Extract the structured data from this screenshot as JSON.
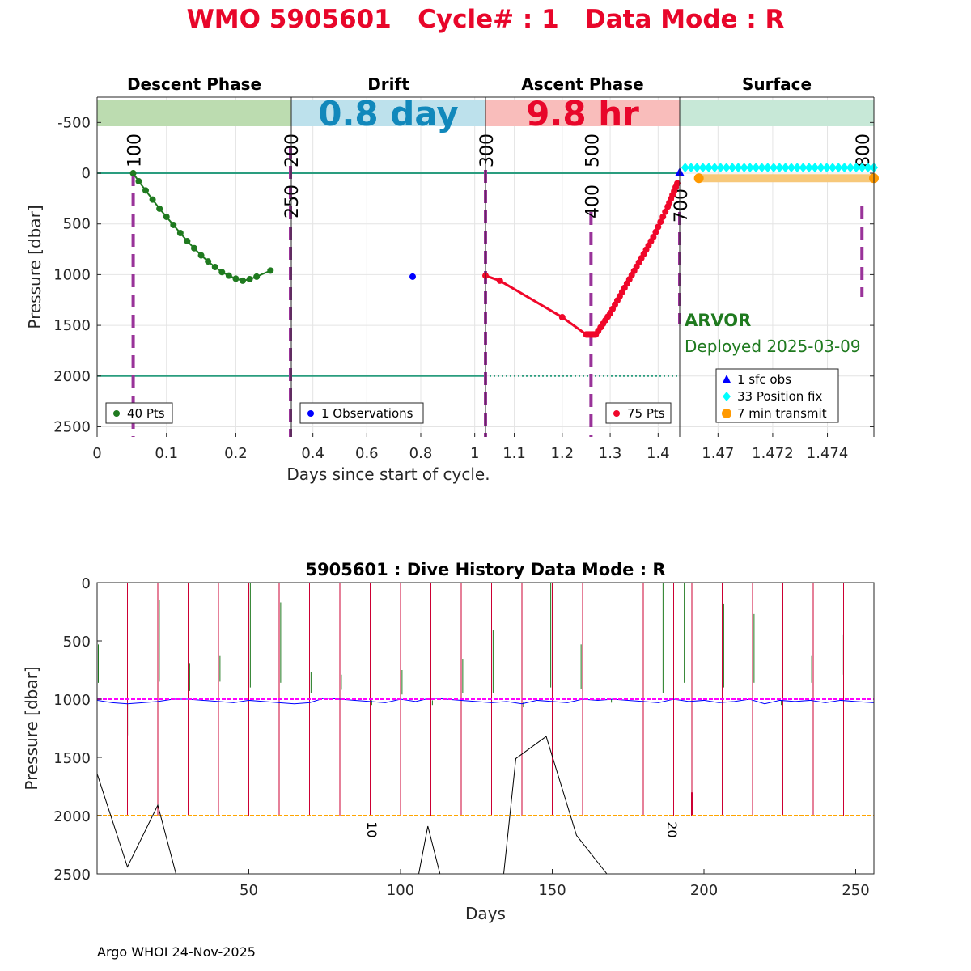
{
  "page": {
    "title": "WMO 5905601   Cycle# : 1   Data Mode : R",
    "footer": "Argo WHOI 24-Nov-2025"
  },
  "colors": {
    "title": "#e8062a",
    "descent": "#1f7a1f",
    "drift": "#0000ff",
    "ascent": "#f0072a",
    "position": "#00ffff",
    "transmit": "#ffa500",
    "marker": "#993399",
    "refline": "#2a9d7f",
    "descent_band": "#bcdcb0",
    "drift_band": "#bde1ec",
    "ascent_band": "#f9bdbb",
    "surface_band": "#c7e8d7",
    "drift_big": "#1188bb",
    "ascent_big": "#e8062a",
    "float_text": "#1f7a1f",
    "history_blue": "#0000ff",
    "history_red": "#cc0033",
    "history_green": "#1f7a1f",
    "history_magenta": "#ff00ff",
    "history_orange": "#ffa500"
  },
  "chart_data": [
    {
      "type": "scatter",
      "xlabel": "Days since start of cycle.",
      "ylabel": "Pressure [dbar]",
      "ylim": [
        2600,
        -750
      ],
      "yticks": [
        -500,
        0,
        500,
        1000,
        1500,
        2000,
        2500
      ],
      "phases": [
        {
          "name": "Descent Phase",
          "xlim": [
            0,
            0.28
          ],
          "xticks": [
            0,
            0.1,
            0.2
          ],
          "band_text": ""
        },
        {
          "name": "Drift",
          "xlim": [
            0.32,
            1.04
          ],
          "xticks": [
            0.4,
            0.6,
            0.8,
            1
          ],
          "band_text": "0.8 day"
        },
        {
          "name": "Ascent Phase",
          "xlim": [
            1.04,
            1.445
          ],
          "xticks": [
            1.1,
            1.2,
            1.3,
            1.4
          ],
          "band_text": "9.8 hr"
        },
        {
          "name": "Surface",
          "xlim": [
            1.4686,
            1.4757
          ],
          "xticks": [
            1.47,
            1.472,
            1.474
          ],
          "band_text": ""
        }
      ],
      "reference_lines": [
        0,
        2000
      ],
      "vertical_markers": [
        {
          "label": "100",
          "x": 0.052
        },
        {
          "label": "200",
          "x": 0.28
        },
        {
          "label": "250",
          "x": 0.28
        },
        {
          "label": "300",
          "x": 1.04
        },
        {
          "label": "400",
          "x": 1.26
        },
        {
          "label": "500",
          "x": 1.26
        },
        {
          "label": "700",
          "x": 1.445
        },
        {
          "label": "800",
          "x": 1.4755
        }
      ],
      "descent": {
        "legend": "40 Pts",
        "x": [
          0.052,
          0.06,
          0.07,
          0.08,
          0.09,
          0.1,
          0.11,
          0.12,
          0.13,
          0.14,
          0.15,
          0.16,
          0.17,
          0.18,
          0.19,
          0.2,
          0.21,
          0.22,
          0.23,
          0.25
        ],
        "y": [
          0,
          80,
          170,
          260,
          350,
          430,
          510,
          590,
          670,
          740,
          810,
          870,
          925,
          975,
          1010,
          1040,
          1060,
          1045,
          1020,
          960
        ]
      },
      "drift": {
        "legend": "1 Observations",
        "x": [
          0.77
        ],
        "y": [
          1020
        ]
      },
      "ascent": {
        "legend": "75 Pts",
        "x": [
          1.04,
          1.07,
          1.2,
          1.25,
          1.26,
          1.27,
          1.3,
          1.33,
          1.36,
          1.39,
          1.42,
          1.44
        ],
        "y": [
          1010,
          1060,
          1420,
          1590,
          1590,
          1590,
          1380,
          1130,
          880,
          630,
          330,
          100
        ]
      },
      "surface": {
        "legend_obs": "1 sfc obs",
        "legend_fix": "33 Position fix",
        "legend_tx": "7 min transmit",
        "sfc_obs": {
          "x": 1.445,
          "y": 0
        },
        "position_fix_y": -55,
        "transmit_y": 50,
        "fix_range": [
          1.4688,
          1.4757
        ],
        "tx_range": [
          1.4693,
          1.4757
        ]
      },
      "float": {
        "model": "ARVOR",
        "deployed": "Deployed 2025-03-09"
      }
    },
    {
      "type": "line",
      "title": "5905601 : Dive History      Data Mode : R",
      "xlabel": "Days",
      "ylabel": "Pressure [dbar]",
      "xlim": [
        0,
        256
      ],
      "ylim": [
        2500,
        0
      ],
      "xticks": [
        50,
        100,
        150,
        200,
        250
      ],
      "yticks": [
        0,
        500,
        1000,
        1500,
        2000,
        2500
      ],
      "park_level": 1000,
      "profile_level": 2000,
      "cycle_labels": [
        {
          "label": "10",
          "x": 89,
          "y": 2050
        },
        {
          "label": "20",
          "x": 188,
          "y": 2050
        }
      ],
      "red_profiles_x": [
        10,
        20,
        30,
        40,
        50,
        60,
        70,
        80,
        90,
        100,
        110,
        120,
        130,
        140,
        150,
        160,
        170,
        180,
        190,
        196,
        206,
        216,
        226,
        236,
        246,
        256
      ],
      "green_segments": [
        {
          "x": 0.4,
          "y0": 530,
          "y1": 860
        },
        {
          "x": 10.5,
          "y0": 1040,
          "y1": 1310
        },
        {
          "x": 20.5,
          "y0": 150,
          "y1": 850
        },
        {
          "x": 30.5,
          "y0": 690,
          "y1": 930
        },
        {
          "x": 40.5,
          "y0": 630,
          "y1": 850
        },
        {
          "x": 50.5,
          "y0": 0,
          "y1": 900
        },
        {
          "x": 60.5,
          "y0": 170,
          "y1": 860
        },
        {
          "x": 70.5,
          "y0": 770,
          "y1": 950
        },
        {
          "x": 80.5,
          "y0": 790,
          "y1": 920
        },
        {
          "x": 90.5,
          "y0": 1010,
          "y1": 1050
        },
        {
          "x": 100.5,
          "y0": 750,
          "y1": 960
        },
        {
          "x": 110.5,
          "y0": 1010,
          "y1": 1050
        },
        {
          "x": 120.5,
          "y0": 660,
          "y1": 950
        },
        {
          "x": 130.5,
          "y0": 410,
          "y1": 950
        },
        {
          "x": 140.5,
          "y0": 1020,
          "y1": 1070
        },
        {
          "x": 149.5,
          "y0": 0,
          "y1": 900
        },
        {
          "x": 159.5,
          "y0": 530,
          "y1": 910
        },
        {
          "x": 169.5,
          "y0": 1000,
          "y1": 1030
        },
        {
          "x": 186.5,
          "y0": 0,
          "y1": 950
        },
        {
          "x": 193.5,
          "y0": 0,
          "y1": 860
        },
        {
          "x": 206.5,
          "y0": 180,
          "y1": 900
        },
        {
          "x": 216.5,
          "y0": 270,
          "y1": 860
        },
        {
          "x": 225.5,
          "y0": 1010,
          "y1": 1050
        },
        {
          "x": 235.5,
          "y0": 630,
          "y1": 860
        },
        {
          "x": 245.5,
          "y0": 450,
          "y1": 790
        }
      ],
      "drift_series": {
        "x": [
          0,
          5,
          10,
          15,
          20,
          25,
          30,
          35,
          40,
          45,
          50,
          55,
          60,
          65,
          70,
          75,
          80,
          85,
          90,
          95,
          100,
          105,
          110,
          115,
          120,
          125,
          130,
          135,
          140,
          145,
          150,
          155,
          160,
          165,
          170,
          175,
          180,
          185,
          190,
          195,
          200,
          205,
          210,
          215,
          220,
          225,
          230,
          235,
          240,
          245,
          250,
          256
        ],
        "y": [
          1010,
          1030,
          1040,
          1030,
          1020,
          1000,
          1000,
          1010,
          1020,
          1030,
          1010,
          1020,
          1030,
          1040,
          1030,
          990,
          1000,
          1010,
          1020,
          1030,
          1000,
          1020,
          990,
          1000,
          1010,
          1020,
          1030,
          1020,
          1040,
          1010,
          1020,
          1030,
          1000,
          1010,
          1000,
          1010,
          1020,
          1030,
          1000,
          1020,
          1010,
          1030,
          1020,
          1000,
          1040,
          1010,
          1020,
          1010,
          1030,
          1010,
          1020,
          1030
        ]
      },
      "black_series": [
        {
          "x": [
            0,
            10,
            20,
            26
          ],
          "y": [
            1640,
            2440,
            1910,
            2500
          ]
        },
        {
          "x": [
            106,
            109,
            113
          ],
          "y": [
            2500,
            2090,
            2500
          ]
        },
        {
          "x": [
            134,
            138,
            148,
            158,
            168
          ],
          "y": [
            2500,
            1510,
            1320,
            2170,
            2500
          ]
        }
      ]
    }
  ]
}
